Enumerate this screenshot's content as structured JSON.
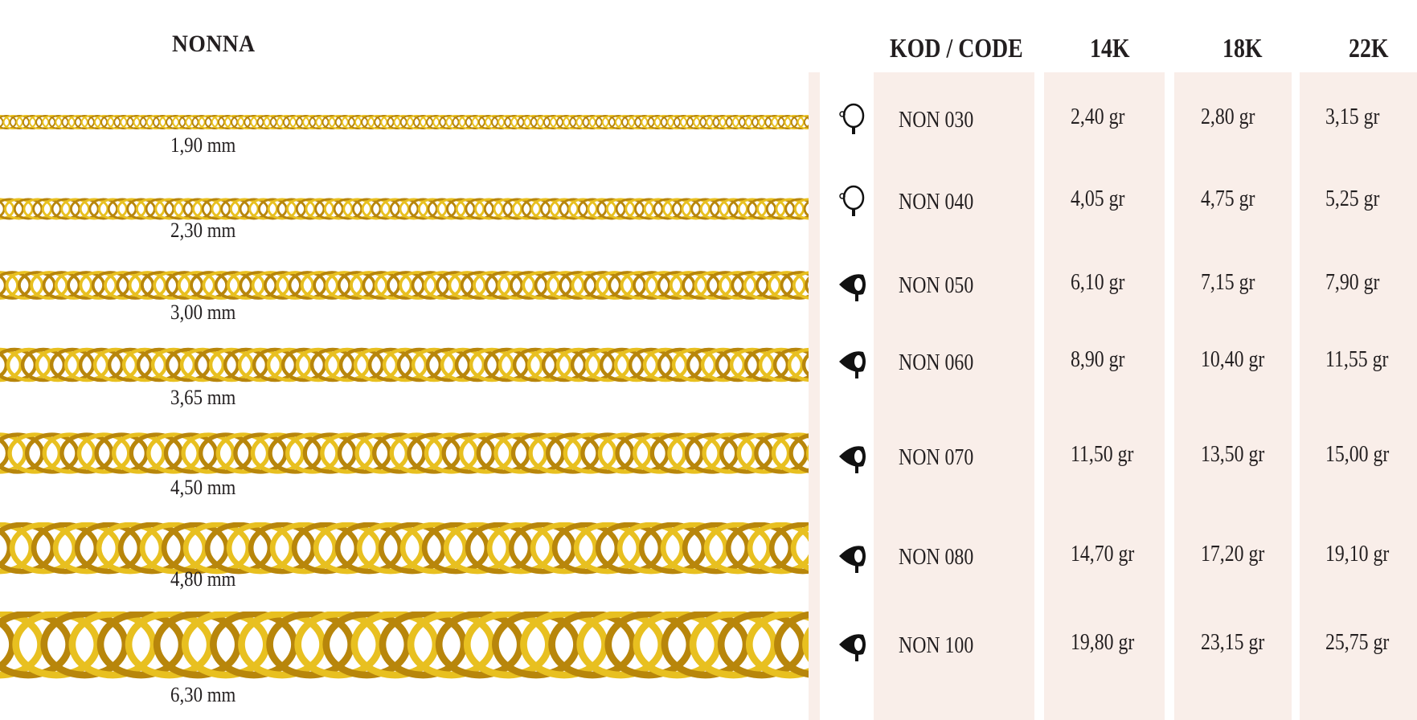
{
  "title": "NONNA",
  "headers": {
    "code": "KOD / CODE",
    "k14": "14K",
    "k18": "18K",
    "k22": "22K"
  },
  "colors": {
    "gold": "#e8c020",
    "gold_dark": "#b8860b",
    "strip": "#f9eee9",
    "text": "#231f20"
  },
  "rows": [
    {
      "width": "1,90 mm",
      "clasp": "spring-ring-clasp-icon",
      "code": "NON 030",
      "k14": "2,40 gr",
      "k18": "2,80 gr",
      "k22": "3,15 gr"
    },
    {
      "width": "2,30 mm",
      "clasp": "spring-ring-clasp-icon",
      "code": "NON 040",
      "k14": "4,05 gr",
      "k18": "4,75 gr",
      "k22": "5,25 gr"
    },
    {
      "width": "3,00 mm",
      "clasp": "lobster-clasp-icon",
      "code": "NON 050",
      "k14": "6,10 gr",
      "k18": "7,15 gr",
      "k22": "7,90 gr"
    },
    {
      "width": "3,65 mm",
      "clasp": "lobster-clasp-icon",
      "code": "NON 060",
      "k14": "8,90 gr",
      "k18": "10,40 gr",
      "k22": "11,55 gr"
    },
    {
      "width": "4,50 mm",
      "clasp": "lobster-clasp-icon",
      "code": "NON 070",
      "k14": "11,50 gr",
      "k18": "13,50 gr",
      "k22": "15,00 gr"
    },
    {
      "width": "4,80 mm",
      "clasp": "lobster-clasp-icon",
      "code": "NON 080",
      "k14": "14,70 gr",
      "k18": "17,20 gr",
      "k22": "19,10 gr"
    },
    {
      "width": "6,30 mm",
      "clasp": "lobster-clasp-icon",
      "code": "NON 100",
      "k14": "19,80 gr",
      "k18": "23,15 gr",
      "k22": "25,75 gr"
    }
  ]
}
